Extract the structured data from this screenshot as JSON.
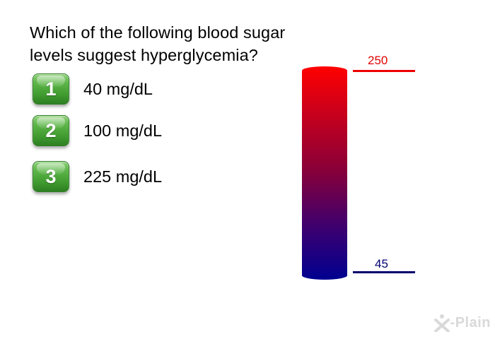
{
  "question": {
    "line1": "Which of the following blood sugar",
    "line2": "levels suggest hyperglycemia?"
  },
  "options": [
    {
      "number": "1",
      "label": "40 mg/dL"
    },
    {
      "number": "2",
      "label": "100 mg/dL"
    },
    {
      "number": "3",
      "label": "225 mg/dL"
    }
  ],
  "gauge": {
    "top_value": "250",
    "bottom_value": "45",
    "top_color": "#ff0000",
    "bottom_color": "#000090"
  },
  "logo": {
    "text": "-Plain"
  },
  "colors": {
    "badge_green": "#4caf3c"
  }
}
